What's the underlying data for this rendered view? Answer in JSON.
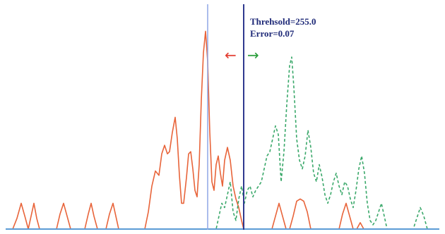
{
  "chart_data": {
    "type": "line",
    "title": "",
    "xlabel": "",
    "ylabel": "",
    "xlim": [
      0,
      630
    ],
    "ylim": [
      0,
      1
    ],
    "grid": false,
    "legend": "none",
    "annotations": {
      "threshold_text": "Threhsold=255.0",
      "error_text": "Error=0.07",
      "left_arrow_glyph": "←",
      "right_arrow_glyph": "→"
    },
    "vertical_lines": [
      {
        "name": "",
        "x": 294,
        "color": "#8fa6e6"
      },
      {
        "name": "",
        "x": 345,
        "color": "#2f3a8f"
      }
    ],
    "baseline_color": "#5b9bd5",
    "arrow_colors": {
      "left": "#e23b2e",
      "right": "#2a9d3a"
    },
    "series": [
      {
        "name": "",
        "style": "solid",
        "color": "#e8643a",
        "points": [
          [
            18,
            0.0
          ],
          [
            24,
            0.05
          ],
          [
            30,
            0.12
          ],
          [
            36,
            0.05
          ],
          [
            40,
            0.0
          ],
          [
            44,
            0.06
          ],
          [
            48,
            0.12
          ],
          [
            52,
            0.05
          ],
          [
            56,
            0.0
          ],
          [
            80,
            0.0
          ],
          [
            85,
            0.07
          ],
          [
            90,
            0.12
          ],
          [
            95,
            0.06
          ],
          [
            100,
            0.0
          ],
          [
            120,
            0.0
          ],
          [
            125,
            0.07
          ],
          [
            129,
            0.12
          ],
          [
            133,
            0.06
          ],
          [
            138,
            0.0
          ],
          [
            150,
            0.0
          ],
          [
            155,
            0.07
          ],
          [
            160,
            0.12
          ],
          [
            164,
            0.06
          ],
          [
            168,
            0.0
          ],
          [
            205,
            0.0
          ],
          [
            210,
            0.08
          ],
          [
            215,
            0.2
          ],
          [
            220,
            0.27
          ],
          [
            225,
            0.25
          ],
          [
            229,
            0.35
          ],
          [
            233,
            0.39
          ],
          [
            237,
            0.35
          ],
          [
            240,
            0.36
          ],
          [
            244,
            0.45
          ],
          [
            248,
            0.52
          ],
          [
            251,
            0.42
          ],
          [
            254,
            0.25
          ],
          [
            257,
            0.12
          ],
          [
            260,
            0.12
          ],
          [
            264,
            0.24
          ],
          [
            267,
            0.35
          ],
          [
            270,
            0.36
          ],
          [
            273,
            0.28
          ],
          [
            276,
            0.18
          ],
          [
            279,
            0.15
          ],
          [
            282,
            0.3
          ],
          [
            285,
            0.6
          ],
          [
            288,
            0.82
          ],
          [
            291,
            0.92
          ],
          [
            294,
            0.78
          ],
          [
            297,
            0.45
          ],
          [
            300,
            0.22
          ],
          [
            303,
            0.18
          ],
          [
            306,
            0.3
          ],
          [
            309,
            0.34
          ],
          [
            312,
            0.26
          ],
          [
            315,
            0.2
          ],
          [
            318,
            0.32
          ],
          [
            322,
            0.38
          ],
          [
            326,
            0.32
          ],
          [
            330,
            0.2
          ],
          [
            334,
            0.14
          ],
          [
            338,
            0.1
          ],
          [
            342,
            0.04
          ],
          [
            345,
            0.0
          ],
          [
            385,
            0.0
          ],
          [
            390,
            0.06
          ],
          [
            395,
            0.12
          ],
          [
            400,
            0.06
          ],
          [
            405,
            0.0
          ],
          [
            410,
            0.0
          ],
          [
            415,
            0.06
          ],
          [
            420,
            0.13
          ],
          [
            425,
            0.14
          ],
          [
            430,
            0.13
          ],
          [
            435,
            0.08
          ],
          [
            440,
            0.0
          ],
          [
            480,
            0.0
          ],
          [
            485,
            0.07
          ],
          [
            490,
            0.12
          ],
          [
            495,
            0.06
          ],
          [
            500,
            0.0
          ],
          [
            505,
            0.0
          ],
          [
            510,
            0.03
          ],
          [
            515,
            0.0
          ]
        ]
      },
      {
        "name": "",
        "style": "dashed",
        "color": "#3aa86a",
        "points": [
          [
            300,
            0.0
          ],
          [
            306,
            0.0
          ],
          [
            310,
            0.06
          ],
          [
            314,
            0.12
          ],
          [
            318,
            0.1
          ],
          [
            322,
            0.16
          ],
          [
            326,
            0.22
          ],
          [
            330,
            0.08
          ],
          [
            334,
            0.04
          ],
          [
            338,
            0.14
          ],
          [
            342,
            0.2
          ],
          [
            346,
            0.12
          ],
          [
            350,
            0.18
          ],
          [
            354,
            0.2
          ],
          [
            358,
            0.15
          ],
          [
            362,
            0.18
          ],
          [
            366,
            0.2
          ],
          [
            370,
            0.22
          ],
          [
            374,
            0.28
          ],
          [
            378,
            0.34
          ],
          [
            382,
            0.36
          ],
          [
            386,
            0.42
          ],
          [
            390,
            0.48
          ],
          [
            394,
            0.44
          ],
          [
            398,
            0.22
          ],
          [
            402,
            0.36
          ],
          [
            406,
            0.58
          ],
          [
            410,
            0.76
          ],
          [
            413,
            0.8
          ],
          [
            416,
            0.66
          ],
          [
            420,
            0.42
          ],
          [
            424,
            0.32
          ],
          [
            428,
            0.28
          ],
          [
            432,
            0.34
          ],
          [
            436,
            0.46
          ],
          [
            440,
            0.38
          ],
          [
            444,
            0.26
          ],
          [
            448,
            0.22
          ],
          [
            452,
            0.3
          ],
          [
            456,
            0.24
          ],
          [
            460,
            0.16
          ],
          [
            464,
            0.12
          ],
          [
            468,
            0.16
          ],
          [
            472,
            0.22
          ],
          [
            476,
            0.26
          ],
          [
            480,
            0.2
          ],
          [
            484,
            0.16
          ],
          [
            488,
            0.22
          ],
          [
            492,
            0.2
          ],
          [
            496,
            0.14
          ],
          [
            500,
            0.1
          ],
          [
            504,
            0.18
          ],
          [
            508,
            0.28
          ],
          [
            512,
            0.34
          ],
          [
            516,
            0.26
          ],
          [
            520,
            0.12
          ],
          [
            524,
            0.04
          ],
          [
            528,
            0.02
          ],
          [
            532,
            0.04
          ],
          [
            536,
            0.08
          ],
          [
            540,
            0.12
          ],
          [
            544,
            0.06
          ],
          [
            548,
            0.0
          ],
          [
            585,
            0.0
          ],
          [
            590,
            0.05
          ],
          [
            595,
            0.1
          ],
          [
            600,
            0.06
          ],
          [
            605,
            0.0
          ],
          [
            620,
            0.0
          ]
        ]
      }
    ]
  }
}
